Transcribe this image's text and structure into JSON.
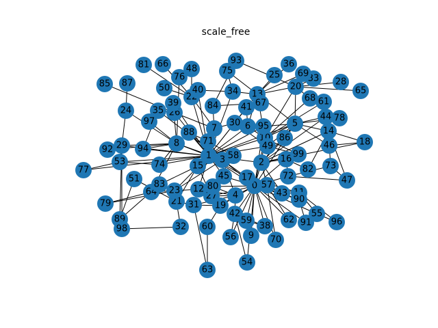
{
  "title": "scale_free",
  "node_color": "#1f77b4",
  "edge_color": "#000000",
  "label_color": "#000000",
  "nodes": [
    "0",
    "1",
    "2",
    "3",
    "4",
    "5",
    "6",
    "7",
    "8",
    "9",
    "10",
    "11",
    "12",
    "13",
    "14",
    "15",
    "16",
    "17",
    "18",
    "19",
    "20",
    "21",
    "22",
    "23",
    "24",
    "25",
    "26",
    "27",
    "28",
    "29",
    "30",
    "31",
    "32",
    "33",
    "34",
    "35",
    "36",
    "38",
    "39",
    "40",
    "41",
    "42",
    "43",
    "44",
    "45",
    "46",
    "47",
    "48",
    "49",
    "50",
    "51",
    "53",
    "54",
    "55",
    "56",
    "57",
    "58",
    "59",
    "60",
    "61",
    "62",
    "63",
    "64",
    "65",
    "66",
    "67",
    "68",
    "69",
    "70",
    "71",
    "72",
    "73",
    "74",
    "75",
    "76",
    "77",
    "78",
    "79",
    "80",
    "81",
    "82",
    "83",
    "84",
    "85",
    "86",
    "87",
    "88",
    "89",
    "90",
    "91",
    "92",
    "93",
    "94",
    "95",
    "96",
    "97",
    "98",
    "99"
  ],
  "edges": [
    [
      "0",
      "1"
    ],
    [
      "0",
      "2"
    ],
    [
      "0",
      "3"
    ],
    [
      "0",
      "4"
    ],
    [
      "0",
      "5"
    ],
    [
      "0",
      "9"
    ],
    [
      "0",
      "10"
    ],
    [
      "0",
      "11"
    ],
    [
      "0",
      "16"
    ],
    [
      "0",
      "17"
    ],
    [
      "0",
      "19"
    ],
    [
      "0",
      "27"
    ],
    [
      "0",
      "38"
    ],
    [
      "0",
      "42"
    ],
    [
      "0",
      "43"
    ],
    [
      "0",
      "45"
    ],
    [
      "0",
      "54"
    ],
    [
      "0",
      "55"
    ],
    [
      "0",
      "56"
    ],
    [
      "0",
      "57"
    ],
    [
      "0",
      "59"
    ],
    [
      "0",
      "62"
    ],
    [
      "0",
      "70"
    ],
    [
      "0",
      "72"
    ],
    [
      "0",
      "80"
    ],
    [
      "0",
      "90"
    ],
    [
      "0",
      "91"
    ],
    [
      "0",
      "95"
    ],
    [
      "1",
      "2"
    ],
    [
      "1",
      "3"
    ],
    [
      "1",
      "5"
    ],
    [
      "1",
      "6"
    ],
    [
      "1",
      "7"
    ],
    [
      "1",
      "8"
    ],
    [
      "1",
      "10"
    ],
    [
      "1",
      "12"
    ],
    [
      "1",
      "13"
    ],
    [
      "1",
      "15"
    ],
    [
      "1",
      "17"
    ],
    [
      "1",
      "22"
    ],
    [
      "1",
      "23"
    ],
    [
      "1",
      "26"
    ],
    [
      "1",
      "29"
    ],
    [
      "1",
      "30"
    ],
    [
      "1",
      "34"
    ],
    [
      "1",
      "39"
    ],
    [
      "1",
      "40"
    ],
    [
      "1",
      "45"
    ],
    [
      "1",
      "49"
    ],
    [
      "1",
      "53"
    ],
    [
      "1",
      "58"
    ],
    [
      "1",
      "71"
    ],
    [
      "1",
      "74"
    ],
    [
      "1",
      "77"
    ],
    [
      "1",
      "88"
    ],
    [
      "1",
      "94"
    ],
    [
      "1",
      "95"
    ],
    [
      "2",
      "5"
    ],
    [
      "2",
      "10"
    ],
    [
      "2",
      "14"
    ],
    [
      "2",
      "16"
    ],
    [
      "2",
      "18"
    ],
    [
      "2",
      "43"
    ],
    [
      "2",
      "44"
    ],
    [
      "2",
      "57"
    ],
    [
      "2",
      "86"
    ],
    [
      "2",
      "99"
    ],
    [
      "3",
      "4"
    ],
    [
      "3",
      "8"
    ],
    [
      "3",
      "15"
    ],
    [
      "3",
      "17"
    ],
    [
      "3",
      "23"
    ],
    [
      "3",
      "35"
    ],
    [
      "3",
      "45"
    ],
    [
      "3",
      "58"
    ],
    [
      "3",
      "71"
    ],
    [
      "3",
      "88"
    ],
    [
      "4",
      "12"
    ],
    [
      "4",
      "19"
    ],
    [
      "4",
      "27"
    ],
    [
      "4",
      "31"
    ],
    [
      "4",
      "42"
    ],
    [
      "4",
      "80"
    ],
    [
      "5",
      "10"
    ],
    [
      "5",
      "13"
    ],
    [
      "5",
      "14"
    ],
    [
      "5",
      "20"
    ],
    [
      "5",
      "44"
    ],
    [
      "5",
      "46"
    ],
    [
      "5",
      "49"
    ],
    [
      "5",
      "78"
    ],
    [
      "5",
      "86"
    ],
    [
      "5",
      "95"
    ],
    [
      "6",
      "13"
    ],
    [
      "6",
      "30"
    ],
    [
      "6",
      "41"
    ],
    [
      "6",
      "95"
    ],
    [
      "6",
      "10"
    ],
    [
      "7",
      "22"
    ],
    [
      "7",
      "26"
    ],
    [
      "7",
      "30"
    ],
    [
      "7",
      "84"
    ],
    [
      "8",
      "24"
    ],
    [
      "8",
      "29"
    ],
    [
      "8",
      "39"
    ],
    [
      "8",
      "64"
    ],
    [
      "8",
      "74"
    ],
    [
      "8",
      "76"
    ],
    [
      "8",
      "92"
    ],
    [
      "8",
      "94"
    ],
    [
      "8",
      "97"
    ],
    [
      "10",
      "13"
    ],
    [
      "10",
      "20"
    ],
    [
      "10",
      "61"
    ],
    [
      "10",
      "68"
    ],
    [
      "10",
      "99"
    ],
    [
      "12",
      "23"
    ],
    [
      "12",
      "80"
    ],
    [
      "13",
      "25"
    ],
    [
      "13",
      "34"
    ],
    [
      "13",
      "36"
    ],
    [
      "13",
      "67"
    ],
    [
      "13",
      "69"
    ],
    [
      "13",
      "75"
    ],
    [
      "13",
      "20"
    ],
    [
      "14",
      "18"
    ],
    [
      "14",
      "47"
    ],
    [
      "14",
      "73"
    ],
    [
      "14",
      "82"
    ],
    [
      "15",
      "27"
    ],
    [
      "15",
      "21"
    ],
    [
      "15",
      "83"
    ],
    [
      "16",
      "82"
    ],
    [
      "16",
      "72"
    ],
    [
      "17",
      "43"
    ],
    [
      "17",
      "57"
    ],
    [
      "17",
      "11"
    ],
    [
      "19",
      "27"
    ],
    [
      "19",
      "60"
    ],
    [
      "19",
      "31"
    ],
    [
      "20",
      "28"
    ],
    [
      "20",
      "33"
    ],
    [
      "20",
      "65"
    ],
    [
      "20",
      "68"
    ],
    [
      "20",
      "93"
    ],
    [
      "21",
      "23"
    ],
    [
      "21",
      "51"
    ],
    [
      "21",
      "31"
    ],
    [
      "22",
      "40"
    ],
    [
      "22",
      "48"
    ],
    [
      "22",
      "50"
    ],
    [
      "22",
      "66"
    ],
    [
      "22",
      "81"
    ],
    [
      "23",
      "32"
    ],
    [
      "23",
      "64"
    ],
    [
      "23",
      "83"
    ],
    [
      "23",
      "79"
    ],
    [
      "24",
      "87"
    ],
    [
      "24",
      "29"
    ],
    [
      "26",
      "35"
    ],
    [
      "26",
      "85"
    ],
    [
      "26",
      "39"
    ],
    [
      "29",
      "53"
    ],
    [
      "29",
      "89"
    ],
    [
      "29",
      "98"
    ],
    [
      "29",
      "92"
    ],
    [
      "30",
      "41"
    ],
    [
      "30",
      "49"
    ],
    [
      "31",
      "63"
    ],
    [
      "32",
      "98"
    ],
    [
      "34",
      "40"
    ],
    [
      "34",
      "75"
    ],
    [
      "35",
      "97"
    ],
    [
      "35",
      "94"
    ],
    [
      "38",
      "42"
    ],
    [
      "38",
      "59"
    ],
    [
      "42",
      "56"
    ],
    [
      "42",
      "54"
    ],
    [
      "42",
      "59"
    ],
    [
      "43",
      "90"
    ],
    [
      "43",
      "11"
    ],
    [
      "11",
      "55"
    ],
    [
      "11",
      "96"
    ],
    [
      "90",
      "91"
    ],
    [
      "55",
      "96"
    ],
    [
      "44",
      "14"
    ],
    [
      "44",
      "61"
    ],
    [
      "44",
      "78"
    ],
    [
      "45",
      "12"
    ],
    [
      "45",
      "80"
    ],
    [
      "46",
      "18"
    ],
    [
      "47",
      "73"
    ],
    [
      "49",
      "99"
    ],
    [
      "51",
      "89"
    ],
    [
      "53",
      "74"
    ],
    [
      "57",
      "62"
    ],
    [
      "57",
      "70"
    ],
    [
      "58",
      "71"
    ],
    [
      "60",
      "63"
    ],
    [
      "64",
      "79"
    ],
    [
      "67",
      "84"
    ],
    [
      "68",
      "61"
    ],
    [
      "71",
      "88"
    ],
    [
      "72",
      "73"
    ],
    [
      "72",
      "47"
    ],
    [
      "77",
      "53"
    ],
    [
      "83",
      "89"
    ],
    [
      "84",
      "93"
    ]
  ]
}
